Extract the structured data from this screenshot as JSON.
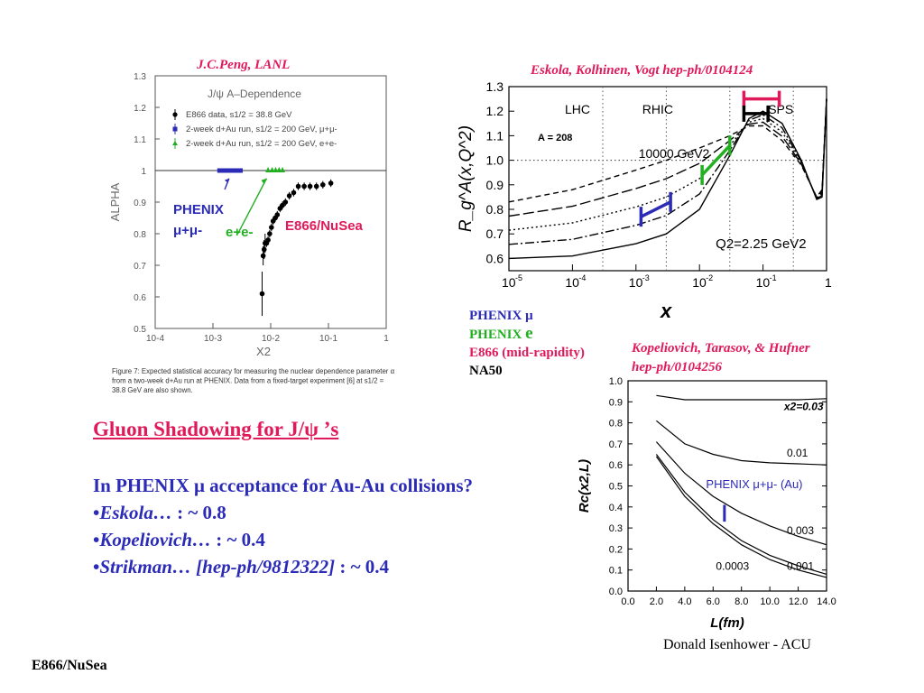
{
  "slide": {
    "title": "Gluon Shadowing for J/ψ ’s",
    "question": "In PHENIX μ acceptance for Au-Au collisions?",
    "bullets": [
      {
        "name": "Eskola…",
        "rest": " : ~ 0.8"
      },
      {
        "name": "Kopeliovich…",
        "rest": " : ~ 0.4"
      },
      {
        "name": "Strikman… [hep-ph/9812322]",
        "rest": " : ~ 0.4"
      }
    ],
    "footer_left": "E866/NuSea",
    "footer_right": "Donald Isenhower - ACU",
    "credit_peng": "J.C.Peng, LANL",
    "credit_eskola": "Eskola, Kolhinen, Vogt hep-ph/0104124",
    "credit_kop_1": "Kopeliovich, Tarasov, & Hufner",
    "credit_kop_2": "hep-ph/0104256",
    "legend": {
      "phenix_mu": "PHENIX μ",
      "phenix_e_a": "PHENIX ",
      "phenix_e_b": "e",
      "e866": "E866 (mid-rapidity)",
      "na50": "NA50"
    },
    "colors": {
      "red": "#e0195a",
      "blue": "#2b2bb8",
      "green": "#22b022"
    }
  },
  "chart_data": [
    {
      "type": "scatter",
      "title": "J/ψ A–Dependence",
      "xlabel": "X2",
      "ylabel": "ALPHA",
      "xscale": "log",
      "xlim": [
        0.0001,
        1
      ],
      "ylim": [
        0.5,
        1.3
      ],
      "yticks": [
        "0.5",
        "0.6",
        "0.7",
        "0.8",
        "0.9",
        "1",
        "1.1",
        "1.2",
        "1.3"
      ],
      "xticks": [
        "10-4",
        "10-3",
        "10-2",
        "10-1",
        "1"
      ],
      "legend": [
        "E866 data, s1/2 = 38.8 GeV",
        "2-week d+Au run, s1/2 = 200 GeV, μ+μ-",
        "2-week d+Au run, s1/2 = 200 GeV, e+e-"
      ],
      "annotations": {
        "phenix": "PHENIX",
        "phenix_mumu": "μ+μ-",
        "ee": "e+e-",
        "e866": "E866/NuSea"
      },
      "caption": [
        "Figure 7:  Expected statistical accuracy for measuring the nuclear dependence parameter α",
        "from a two-week d+Au run at PHENIX. Data from a fixed-target experiment [6] at s1/2 =",
        "38.8 GeV are also shown."
      ],
      "series": [
        {
          "name": "E866 data",
          "x": [
            0.0071,
            0.0074,
            0.0077,
            0.008,
            0.0085,
            0.009,
            0.0096,
            0.0103,
            0.011,
            0.012,
            0.013,
            0.0145,
            0.016,
            0.018,
            0.021,
            0.025,
            0.03,
            0.038,
            0.048,
            0.062,
            0.08,
            0.11
          ],
          "y": [
            0.61,
            0.73,
            0.75,
            0.77,
            0.77,
            0.78,
            0.8,
            0.82,
            0.84,
            0.85,
            0.86,
            0.88,
            0.89,
            0.9,
            0.92,
            0.93,
            0.95,
            0.95,
            0.95,
            0.95,
            0.955,
            0.96
          ]
        },
        {
          "name": "2-week d+Au μ+μ-",
          "x": [
            0.0013,
            0.0015,
            0.0017,
            0.0019,
            0.0021,
            0.0024,
            0.0027,
            0.003
          ],
          "y": [
            1,
            1,
            1,
            1,
            1,
            1,
            1,
            1
          ]
        },
        {
          "name": "2-week d+Au e+e-",
          "x": [
            0.009,
            0.0106,
            0.0122,
            0.014,
            0.016
          ],
          "y": [
            1,
            1,
            1,
            1,
            1
          ]
        }
      ]
    },
    {
      "type": "line",
      "xlabel": "x",
      "ylabel": "R_g^A(x,Q^2)",
      "xscale": "log",
      "xlim": [
        1e-05,
        1
      ],
      "ylim": [
        0.55,
        1.3
      ],
      "yticks": [
        "0.6",
        "0.7",
        "0.8",
        "0.9",
        "1.0",
        "1.1",
        "1.2",
        "1.3"
      ],
      "region_labels": [
        "LHC",
        "RHIC",
        "SPS"
      ],
      "annotations": {
        "a": "A = 208",
        "q_high": "10000 GeV2",
        "q_low": "Q2=2.25 GeV2"
      },
      "series": [
        {
          "name": "Q2=2.25 GeV2",
          "x": [
            1e-05,
            0.0001,
            0.001,
            0.003,
            0.01,
            0.03,
            0.06,
            0.1,
            0.2,
            0.4,
            0.7,
            0.85,
            1
          ],
          "y": [
            0.6,
            0.61,
            0.66,
            0.7,
            0.8,
            1.02,
            1.17,
            1.2,
            1.15,
            1.0,
            0.84,
            0.85,
            1.25
          ]
        },
        {
          "name": "10000 GeV2",
          "x": [
            1e-05,
            0.0001,
            0.001,
            0.003,
            0.01,
            0.03,
            0.06,
            0.1,
            0.2,
            0.4,
            0.7,
            0.85,
            1
          ],
          "y": [
            0.83,
            0.88,
            0.96,
            1.0,
            1.05,
            1.1,
            1.14,
            1.14,
            1.08,
            0.98,
            0.85,
            0.88,
            1.25
          ]
        },
        {
          "name": "PHENIX μ (forward)",
          "x": [
            0.0012,
            0.0035
          ],
          "y": [
            0.77,
            0.83
          ]
        },
        {
          "name": "PHENIX e",
          "x": [
            0.011,
            0.03
          ],
          "y": [
            0.94,
            1.06
          ]
        },
        {
          "name": "E866",
          "x": [
            0.05,
            0.18
          ],
          "y": [
            1.25,
            1.25
          ]
        },
        {
          "name": "NA50",
          "x": [
            0.05,
            0.12
          ],
          "y": [
            1.19,
            1.19
          ]
        }
      ]
    },
    {
      "type": "line",
      "xlabel": "L(fm)",
      "ylabel": "Rc(x2,L)",
      "xlim": [
        0,
        14
      ],
      "ylim": [
        0,
        1
      ],
      "xticks": [
        "0.0",
        "2.0",
        "4.0",
        "6.0",
        "8.0",
        "10.0",
        "12.0",
        "14.0"
      ],
      "yticks": [
        "0.0",
        "0.1",
        "0.2",
        "0.3",
        "0.4",
        "0.5",
        "0.6",
        "0.7",
        "0.8",
        "0.9",
        "1.0"
      ],
      "labels": {
        "x003": "x2=0.03",
        "l001": "0.01",
        "l0003": "0.003",
        "l00003": "0.0003",
        "l0001": "0.001",
        "phenix": "PHENIX μ+μ-  (Au)"
      },
      "series": [
        {
          "name": "x2=0.03",
          "x": [
            2,
            4,
            6,
            8,
            10,
            12,
            14
          ],
          "y": [
            0.93,
            0.91,
            0.91,
            0.91,
            0.91,
            0.91,
            0.915
          ]
        },
        {
          "name": "0.01",
          "x": [
            2,
            4,
            6,
            8,
            10,
            12,
            14
          ],
          "y": [
            0.81,
            0.7,
            0.65,
            0.62,
            0.61,
            0.605,
            0.6
          ]
        },
        {
          "name": "0.003",
          "x": [
            2,
            4,
            6,
            8,
            10,
            12,
            14
          ],
          "y": [
            0.71,
            0.56,
            0.45,
            0.37,
            0.31,
            0.26,
            0.22
          ]
        },
        {
          "name": "0.001",
          "x": [
            2,
            4,
            6,
            8,
            10,
            12,
            14
          ],
          "y": [
            0.65,
            0.47,
            0.34,
            0.24,
            0.17,
            0.12,
            0.08
          ]
        },
        {
          "name": "0.0003",
          "x": [
            2,
            4,
            6,
            8,
            10,
            12,
            14
          ],
          "y": [
            0.64,
            0.45,
            0.32,
            0.22,
            0.15,
            0.1,
            0.065
          ]
        },
        {
          "name": "PHENIX μ+μ-  (Au)",
          "x": [
            6.8,
            6.8
          ],
          "y": [
            0.33,
            0.41
          ]
        }
      ]
    }
  ]
}
